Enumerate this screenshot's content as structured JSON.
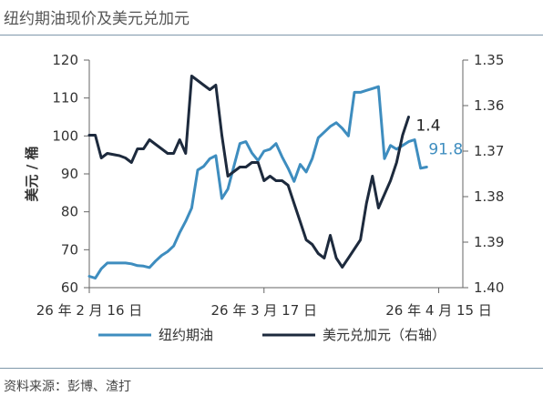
{
  "title": "纽约期油现价及美元兑加元",
  "source": "资料来源：彭博、渣打",
  "chart_data": {
    "type": "line",
    "ylabel_left": "美元 / 桶",
    "left_axis": {
      "min": 60,
      "max": 120,
      "ticks": [
        "60",
        "70",
        "80",
        "90",
        "100",
        "110",
        "120"
      ]
    },
    "right_axis": {
      "min": 1.35,
      "max": 1.4,
      "inverted": true,
      "ticks": [
        "1.35",
        "1.36",
        "1.37",
        "1.38",
        "1.39",
        "1.40"
      ]
    },
    "x_range": [
      0,
      62
    ],
    "x_ticks": [
      {
        "x": 0,
        "label": "26 年 2 月 16 日"
      },
      {
        "x": 29,
        "label": "26 年 3 月 17 日"
      },
      {
        "x": 58,
        "label": "26 年 4 月 15 日"
      }
    ],
    "legend_position": "bottom",
    "series": [
      {
        "name": "纽约期油",
        "axis": "left",
        "color": "#3e8dbf",
        "end_label": "91.8",
        "points": [
          [
            0,
            63
          ],
          [
            1,
            62.5
          ],
          [
            2,
            65
          ],
          [
            3,
            66.5
          ],
          [
            6,
            66.5
          ],
          [
            7,
            66.3
          ],
          [
            8,
            65.8
          ],
          [
            9,
            65.7
          ],
          [
            10,
            65.3
          ],
          [
            11,
            67
          ],
          [
            12,
            68.5
          ],
          [
            13,
            69.5
          ],
          [
            14,
            71
          ],
          [
            15,
            74.5
          ],
          [
            16,
            77.5
          ],
          [
            17,
            81
          ],
          [
            18,
            91
          ],
          [
            19,
            92
          ],
          [
            20,
            94
          ],
          [
            21,
            94.8
          ],
          [
            22,
            83.5
          ],
          [
            23,
            86
          ],
          [
            24,
            92
          ],
          [
            25,
            98
          ],
          [
            26,
            98.5
          ],
          [
            27,
            95.5
          ],
          [
            28,
            93.5
          ],
          [
            29,
            96
          ],
          [
            30,
            96.5
          ],
          [
            31,
            98
          ],
          [
            32,
            94.5
          ],
          [
            33,
            91.5
          ],
          [
            34,
            88
          ],
          [
            35,
            92.5
          ],
          [
            36,
            90.5
          ],
          [
            37,
            94
          ],
          [
            38,
            99.5
          ],
          [
            39,
            101
          ],
          [
            40,
            102.5
          ],
          [
            41,
            103.5
          ],
          [
            42,
            102
          ],
          [
            43,
            100
          ],
          [
            44,
            111.5
          ],
          [
            45,
            111.5
          ],
          [
            46,
            112
          ],
          [
            47,
            112.5
          ],
          [
            48,
            113
          ],
          [
            49,
            94
          ],
          [
            50,
            97.5
          ],
          [
            51,
            96.5
          ],
          [
            52,
            97.5
          ],
          [
            53,
            98.5
          ],
          [
            54,
            99
          ],
          [
            55,
            91.5
          ],
          [
            56,
            91.8
          ]
        ]
      },
      {
        "name": "美元兑加元（右轴）",
        "axis": "right",
        "color": "#1d2a3d",
        "end_label": "1.4",
        "points": [
          [
            0,
            1.3665
          ],
          [
            1,
            1.3665
          ],
          [
            2,
            1.3715
          ],
          [
            3,
            1.3705
          ],
          [
            5,
            1.371
          ],
          [
            6,
            1.3715
          ],
          [
            7,
            1.3725
          ],
          [
            8,
            1.3695
          ],
          [
            9,
            1.3695
          ],
          [
            10,
            1.3675
          ],
          [
            11,
            1.3685
          ],
          [
            12,
            1.3695
          ],
          [
            13,
            1.3705
          ],
          [
            14,
            1.3705
          ],
          [
            15,
            1.3675
          ],
          [
            16,
            1.3705
          ],
          [
            17,
            1.3535
          ],
          [
            18,
            1.3545
          ],
          [
            19,
            1.3555
          ],
          [
            20,
            1.3565
          ],
          [
            21,
            1.3555
          ],
          [
            22,
            1.3665
          ],
          [
            23,
            1.3755
          ],
          [
            24,
            1.3745
          ],
          [
            25,
            1.3735
          ],
          [
            26,
            1.3735
          ],
          [
            27,
            1.3725
          ],
          [
            28,
            1.3725
          ],
          [
            29,
            1.3765
          ],
          [
            30,
            1.3755
          ],
          [
            31,
            1.3765
          ],
          [
            32,
            1.3765
          ],
          [
            33,
            1.3775
          ],
          [
            34,
            1.3815
          ],
          [
            35,
            1.3855
          ],
          [
            36,
            1.3895
          ],
          [
            37,
            1.3905
          ],
          [
            38,
            1.3925
          ],
          [
            39,
            1.3935
          ],
          [
            40,
            1.3885
          ],
          [
            41,
            1.3935
          ],
          [
            42,
            1.3955
          ],
          [
            43,
            1.3935
          ],
          [
            44,
            1.3915
          ],
          [
            45,
            1.3895
          ],
          [
            46,
            1.3815
          ],
          [
            47,
            1.3755
          ],
          [
            48,
            1.3825
          ],
          [
            49,
            1.3795
          ],
          [
            50,
            1.3765
          ],
          [
            51,
            1.3725
          ],
          [
            52,
            1.3665
          ],
          [
            53,
            1.3625
          ]
        ]
      }
    ]
  }
}
